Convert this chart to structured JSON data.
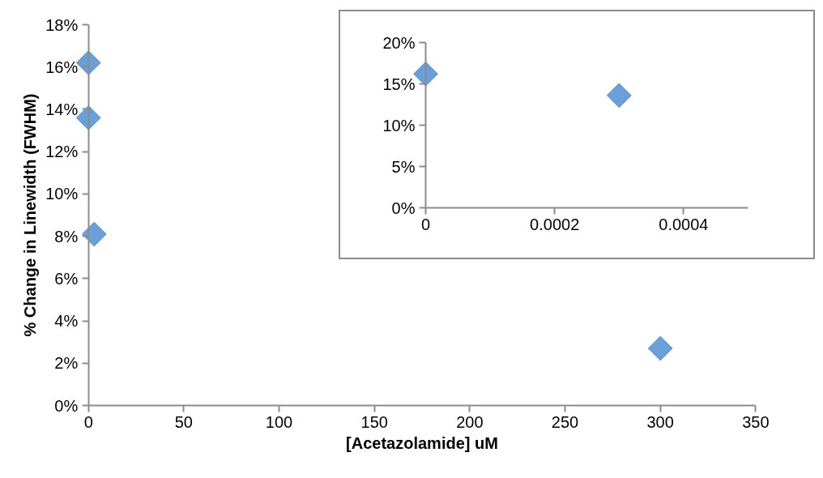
{
  "chart_data": [
    {
      "type": "scatter",
      "xlabel": "[Acetazolamide] uM",
      "ylabel": "% Change in Linewidth (FWHM)",
      "marker": "diamond",
      "grid": false,
      "x": [
        0,
        0.0003,
        3,
        300
      ],
      "series": [
        {
          "color": "#6a9fd8",
          "values": [
            16.2,
            13.6,
            8.1,
            2.7
          ]
        }
      ],
      "xlim": [
        0,
        350
      ],
      "xticks": [
        0,
        50,
        100,
        150,
        200,
        250,
        300,
        350
      ],
      "ylim": [
        0,
        18
      ],
      "yticks": [
        {
          "value": 0,
          "label": "0%"
        },
        {
          "value": 2,
          "label": "2%"
        },
        {
          "value": 4,
          "label": "4%"
        },
        {
          "value": 6,
          "label": "6%"
        },
        {
          "value": 8,
          "label": "8%"
        },
        {
          "value": 10,
          "label": "10%"
        },
        {
          "value": 12,
          "label": "12%"
        },
        {
          "value": 14,
          "label": "14%"
        },
        {
          "value": 16,
          "label": "16%"
        },
        {
          "value": 18,
          "label": "18%"
        }
      ]
    },
    {
      "type": "scatter",
      "marker": "diamond",
      "grid": false,
      "x": [
        0,
        0.0003
      ],
      "series": [
        {
          "color": "#6a9fd8",
          "values": [
            16.2,
            13.6
          ]
        }
      ],
      "xlim": [
        0,
        0.0005
      ],
      "xticks": [
        0,
        0.0002,
        0.0004
      ],
      "ylim": [
        0,
        20
      ],
      "yticks": [
        {
          "value": 0,
          "label": "0%"
        },
        {
          "value": 5,
          "label": "5%"
        },
        {
          "value": 10,
          "label": "10%"
        },
        {
          "value": 15,
          "label": "15%"
        },
        {
          "value": 20,
          "label": "20%"
        }
      ]
    }
  ]
}
